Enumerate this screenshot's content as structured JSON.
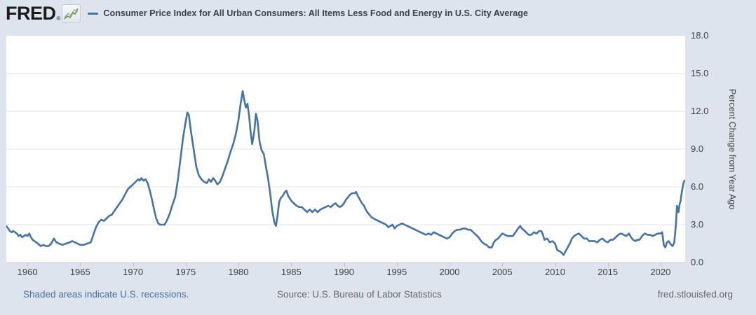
{
  "header": {
    "logo_text": "FRED",
    "registered_mark": "®",
    "series_title": "Consumer Price Index for All Urban Consumers: All Items Less Food and Energy in U.S. City Average"
  },
  "footer": {
    "recessions_note": "Shaded areas indicate U.S. recessions.",
    "source": "Source: U.S. Bureau of Labor Statistics",
    "site": "fred.stlouisfed.org"
  },
  "colors": {
    "line": "#4572a7",
    "page_bg": "#dde4ed",
    "plot_bg": "#ffffff",
    "grid": "#e4e4e4",
    "axis": "#c2c7cf",
    "text": "#3f4348",
    "link": "#4d6fa3",
    "muted": "#666a6e"
  },
  "chart_data": {
    "type": "line",
    "title": "Consumer Price Index for All Urban Consumers: All Items Less Food and Energy in U.S. City Average",
    "xlabel": "",
    "ylabel": "Percent Change from Year Ago",
    "x_range": [
      1958.0,
      2022.33
    ],
    "ylim": [
      0,
      18
    ],
    "y_ticks": [
      0,
      3,
      6,
      9,
      12,
      15,
      18
    ],
    "x_ticks": [
      1960,
      1965,
      1970,
      1975,
      1980,
      1985,
      1990,
      1995,
      2000,
      2005,
      2010,
      2015,
      2020
    ],
    "grid": "horizontal-only",
    "legend_position": "top",
    "series": [
      {
        "name": "Consumer Price Index for All Urban Consumers: All Items Less Food and Energy in U.S. City Average",
        "color": "#4572a7",
        "units": "Percent Change from Year Ago",
        "points": [
          [
            1958.0,
            2.9
          ],
          [
            1958.17,
            2.7
          ],
          [
            1958.33,
            2.5
          ],
          [
            1958.5,
            2.4
          ],
          [
            1958.67,
            2.5
          ],
          [
            1958.83,
            2.4
          ],
          [
            1959.0,
            2.3
          ],
          [
            1959.17,
            2.1
          ],
          [
            1959.33,
            2.2
          ],
          [
            1959.5,
            2.0
          ],
          [
            1959.67,
            2.1
          ],
          [
            1959.83,
            2.2
          ],
          [
            1960.0,
            2.1
          ],
          [
            1960.17,
            2.3
          ],
          [
            1960.33,
            2.0
          ],
          [
            1960.5,
            1.8
          ],
          [
            1960.67,
            1.7
          ],
          [
            1960.83,
            1.6
          ],
          [
            1961.0,
            1.5
          ],
          [
            1961.25,
            1.3
          ],
          [
            1961.5,
            1.4
          ],
          [
            1961.75,
            1.3
          ],
          [
            1962.0,
            1.3
          ],
          [
            1962.25,
            1.5
          ],
          [
            1962.5,
            1.9
          ],
          [
            1962.75,
            1.6
          ],
          [
            1963.0,
            1.5
          ],
          [
            1963.33,
            1.4
          ],
          [
            1963.67,
            1.5
          ],
          [
            1964.0,
            1.6
          ],
          [
            1964.25,
            1.7
          ],
          [
            1964.5,
            1.6
          ],
          [
            1964.75,
            1.5
          ],
          [
            1965.0,
            1.4
          ],
          [
            1965.33,
            1.4
          ],
          [
            1965.67,
            1.5
          ],
          [
            1966.0,
            1.6
          ],
          [
            1966.25,
            2.2
          ],
          [
            1966.5,
            2.8
          ],
          [
            1966.75,
            3.2
          ],
          [
            1967.0,
            3.4
          ],
          [
            1967.25,
            3.3
          ],
          [
            1967.5,
            3.5
          ],
          [
            1967.75,
            3.7
          ],
          [
            1968.0,
            3.8
          ],
          [
            1968.25,
            4.1
          ],
          [
            1968.5,
            4.4
          ],
          [
            1968.75,
            4.7
          ],
          [
            1969.0,
            5.0
          ],
          [
            1969.25,
            5.4
          ],
          [
            1969.5,
            5.8
          ],
          [
            1969.75,
            6.0
          ],
          [
            1970.0,
            6.2
          ],
          [
            1970.25,
            6.4
          ],
          [
            1970.5,
            6.6
          ],
          [
            1970.65,
            6.5
          ],
          [
            1970.8,
            6.7
          ],
          [
            1971.0,
            6.5
          ],
          [
            1971.2,
            6.6
          ],
          [
            1971.4,
            6.3
          ],
          [
            1971.6,
            5.7
          ],
          [
            1971.8,
            5.0
          ],
          [
            1972.0,
            4.2
          ],
          [
            1972.2,
            3.5
          ],
          [
            1972.4,
            3.1
          ],
          [
            1972.6,
            3.0
          ],
          [
            1972.8,
            3.0
          ],
          [
            1973.0,
            3.0
          ],
          [
            1973.25,
            3.4
          ],
          [
            1973.5,
            3.9
          ],
          [
            1973.75,
            4.6
          ],
          [
            1974.0,
            5.2
          ],
          [
            1974.25,
            6.5
          ],
          [
            1974.5,
            8.2
          ],
          [
            1974.75,
            9.9
          ],
          [
            1975.0,
            11.2
          ],
          [
            1975.15,
            11.9
          ],
          [
            1975.3,
            11.7
          ],
          [
            1975.5,
            10.4
          ],
          [
            1975.75,
            9.0
          ],
          [
            1976.0,
            7.6
          ],
          [
            1976.25,
            6.9
          ],
          [
            1976.5,
            6.6
          ],
          [
            1976.75,
            6.4
          ],
          [
            1977.0,
            6.3
          ],
          [
            1977.2,
            6.6
          ],
          [
            1977.4,
            6.4
          ],
          [
            1977.6,
            6.7
          ],
          [
            1977.8,
            6.5
          ],
          [
            1978.0,
            6.2
          ],
          [
            1978.25,
            6.4
          ],
          [
            1978.5,
            6.9
          ],
          [
            1978.75,
            7.5
          ],
          [
            1979.0,
            8.1
          ],
          [
            1979.25,
            8.8
          ],
          [
            1979.5,
            9.4
          ],
          [
            1979.75,
            10.2
          ],
          [
            1980.0,
            11.3
          ],
          [
            1980.2,
            12.6
          ],
          [
            1980.4,
            13.6
          ],
          [
            1980.55,
            12.9
          ],
          [
            1980.7,
            12.3
          ],
          [
            1980.85,
            12.6
          ],
          [
            1981.0,
            11.7
          ],
          [
            1981.15,
            10.4
          ],
          [
            1981.3,
            9.4
          ],
          [
            1981.5,
            10.4
          ],
          [
            1981.65,
            11.8
          ],
          [
            1981.8,
            11.3
          ],
          [
            1982.0,
            9.6
          ],
          [
            1982.2,
            8.9
          ],
          [
            1982.4,
            8.6
          ],
          [
            1982.6,
            7.6
          ],
          [
            1982.8,
            6.7
          ],
          [
            1983.0,
            5.5
          ],
          [
            1983.2,
            4.1
          ],
          [
            1983.4,
            3.2
          ],
          [
            1983.55,
            2.9
          ],
          [
            1983.7,
            3.7
          ],
          [
            1983.85,
            4.8
          ],
          [
            1984.0,
            5.1
          ],
          [
            1984.2,
            5.3
          ],
          [
            1984.4,
            5.6
          ],
          [
            1984.55,
            5.7
          ],
          [
            1984.7,
            5.3
          ],
          [
            1984.85,
            5.1
          ],
          [
            1985.0,
            4.9
          ],
          [
            1985.25,
            4.7
          ],
          [
            1985.5,
            4.5
          ],
          [
            1985.75,
            4.4
          ],
          [
            1986.0,
            4.4
          ],
          [
            1986.25,
            4.2
          ],
          [
            1986.5,
            4.0
          ],
          [
            1986.75,
            4.2
          ],
          [
            1987.0,
            4.0
          ],
          [
            1987.25,
            4.2
          ],
          [
            1987.5,
            4.0
          ],
          [
            1987.75,
            4.2
          ],
          [
            1988.0,
            4.3
          ],
          [
            1988.25,
            4.4
          ],
          [
            1988.5,
            4.5
          ],
          [
            1988.75,
            4.4
          ],
          [
            1989.0,
            4.6
          ],
          [
            1989.2,
            4.7
          ],
          [
            1989.4,
            4.5
          ],
          [
            1989.6,
            4.4
          ],
          [
            1989.8,
            4.5
          ],
          [
            1990.0,
            4.7
          ],
          [
            1990.2,
            5.0
          ],
          [
            1990.4,
            5.2
          ],
          [
            1990.6,
            5.4
          ],
          [
            1990.8,
            5.5
          ],
          [
            1991.0,
            5.5
          ],
          [
            1991.15,
            5.6
          ],
          [
            1991.3,
            5.3
          ],
          [
            1991.5,
            5.0
          ],
          [
            1991.7,
            4.7
          ],
          [
            1991.9,
            4.5
          ],
          [
            1992.0,
            4.3
          ],
          [
            1992.2,
            4.0
          ],
          [
            1992.4,
            3.8
          ],
          [
            1992.6,
            3.6
          ],
          [
            1992.8,
            3.5
          ],
          [
            1993.0,
            3.4
          ],
          [
            1993.25,
            3.3
          ],
          [
            1993.5,
            3.2
          ],
          [
            1993.75,
            3.1
          ],
          [
            1994.0,
            3.0
          ],
          [
            1994.2,
            2.8
          ],
          [
            1994.4,
            2.9
          ],
          [
            1994.6,
            3.0
          ],
          [
            1994.8,
            2.7
          ],
          [
            1995.0,
            2.9
          ],
          [
            1995.25,
            3.0
          ],
          [
            1995.5,
            3.1
          ],
          [
            1995.75,
            3.0
          ],
          [
            1996.0,
            2.9
          ],
          [
            1996.25,
            2.8
          ],
          [
            1996.5,
            2.7
          ],
          [
            1996.75,
            2.6
          ],
          [
            1997.0,
            2.5
          ],
          [
            1997.25,
            2.4
          ],
          [
            1997.5,
            2.3
          ],
          [
            1997.75,
            2.2
          ],
          [
            1998.0,
            2.3
          ],
          [
            1998.25,
            2.2
          ],
          [
            1998.5,
            2.4
          ],
          [
            1998.75,
            2.3
          ],
          [
            1999.0,
            2.2
          ],
          [
            1999.25,
            2.1
          ],
          [
            1999.5,
            2.0
          ],
          [
            1999.75,
            1.9
          ],
          [
            2000.0,
            2.0
          ],
          [
            2000.25,
            2.3
          ],
          [
            2000.5,
            2.5
          ],
          [
            2000.75,
            2.6
          ],
          [
            2001.0,
            2.6
          ],
          [
            2001.25,
            2.7
          ],
          [
            2001.5,
            2.7
          ],
          [
            2001.75,
            2.6
          ],
          [
            2002.0,
            2.6
          ],
          [
            2002.25,
            2.4
          ],
          [
            2002.5,
            2.2
          ],
          [
            2002.75,
            2.0
          ],
          [
            2003.0,
            1.7
          ],
          [
            2003.25,
            1.5
          ],
          [
            2003.5,
            1.4
          ],
          [
            2003.75,
            1.2
          ],
          [
            2004.0,
            1.2
          ],
          [
            2004.2,
            1.6
          ],
          [
            2004.4,
            1.8
          ],
          [
            2004.6,
            1.9
          ],
          [
            2004.8,
            2.1
          ],
          [
            2005.0,
            2.3
          ],
          [
            2005.25,
            2.2
          ],
          [
            2005.5,
            2.1
          ],
          [
            2005.75,
            2.1
          ],
          [
            2006.0,
            2.1
          ],
          [
            2006.25,
            2.4
          ],
          [
            2006.5,
            2.7
          ],
          [
            2006.7,
            2.9
          ],
          [
            2006.85,
            2.7
          ],
          [
            2007.0,
            2.6
          ],
          [
            2007.25,
            2.4
          ],
          [
            2007.5,
            2.2
          ],
          [
            2007.75,
            2.2
          ],
          [
            2008.0,
            2.4
          ],
          [
            2008.25,
            2.3
          ],
          [
            2008.5,
            2.5
          ],
          [
            2008.7,
            2.5
          ],
          [
            2008.85,
            2.2
          ],
          [
            2009.0,
            1.8
          ],
          [
            2009.25,
            1.9
          ],
          [
            2009.5,
            1.6
          ],
          [
            2009.75,
            1.7
          ],
          [
            2010.0,
            1.5
          ],
          [
            2010.2,
            1.0
          ],
          [
            2010.4,
            0.9
          ],
          [
            2010.6,
            0.8
          ],
          [
            2010.8,
            0.6
          ],
          [
            2011.0,
            0.9
          ],
          [
            2011.2,
            1.2
          ],
          [
            2011.4,
            1.5
          ],
          [
            2011.6,
            1.9
          ],
          [
            2011.8,
            2.1
          ],
          [
            2012.0,
            2.2
          ],
          [
            2012.25,
            2.3
          ],
          [
            2012.5,
            2.1
          ],
          [
            2012.75,
            1.9
          ],
          [
            2013.0,
            1.9
          ],
          [
            2013.25,
            1.7
          ],
          [
            2013.5,
            1.7
          ],
          [
            2013.75,
            1.7
          ],
          [
            2014.0,
            1.6
          ],
          [
            2014.25,
            1.8
          ],
          [
            2014.5,
            1.9
          ],
          [
            2014.75,
            1.7
          ],
          [
            2015.0,
            1.6
          ],
          [
            2015.25,
            1.8
          ],
          [
            2015.5,
            1.8
          ],
          [
            2015.75,
            2.0
          ],
          [
            2016.0,
            2.2
          ],
          [
            2016.25,
            2.3
          ],
          [
            2016.5,
            2.2
          ],
          [
            2016.75,
            2.1
          ],
          [
            2017.0,
            2.3
          ],
          [
            2017.2,
            2.0
          ],
          [
            2017.4,
            1.8
          ],
          [
            2017.6,
            1.7
          ],
          [
            2017.8,
            1.8
          ],
          [
            2018.0,
            1.8
          ],
          [
            2018.25,
            2.1
          ],
          [
            2018.5,
            2.3
          ],
          [
            2018.75,
            2.2
          ],
          [
            2019.0,
            2.2
          ],
          [
            2019.25,
            2.1
          ],
          [
            2019.5,
            2.2
          ],
          [
            2019.75,
            2.3
          ],
          [
            2020.0,
            2.3
          ],
          [
            2020.15,
            2.4
          ],
          [
            2020.3,
            1.4
          ],
          [
            2020.45,
            1.2
          ],
          [
            2020.6,
            1.6
          ],
          [
            2020.75,
            1.7
          ],
          [
            2021.0,
            1.4
          ],
          [
            2021.15,
            1.3
          ],
          [
            2021.3,
            1.6
          ],
          [
            2021.45,
            3.0
          ],
          [
            2021.55,
            4.5
          ],
          [
            2021.7,
            4.0
          ],
          [
            2021.8,
            4.6
          ],
          [
            2021.9,
            4.9
          ],
          [
            2022.0,
            5.5
          ],
          [
            2022.1,
            6.0
          ],
          [
            2022.2,
            6.4
          ],
          [
            2022.3,
            6.5
          ]
        ]
      }
    ]
  }
}
